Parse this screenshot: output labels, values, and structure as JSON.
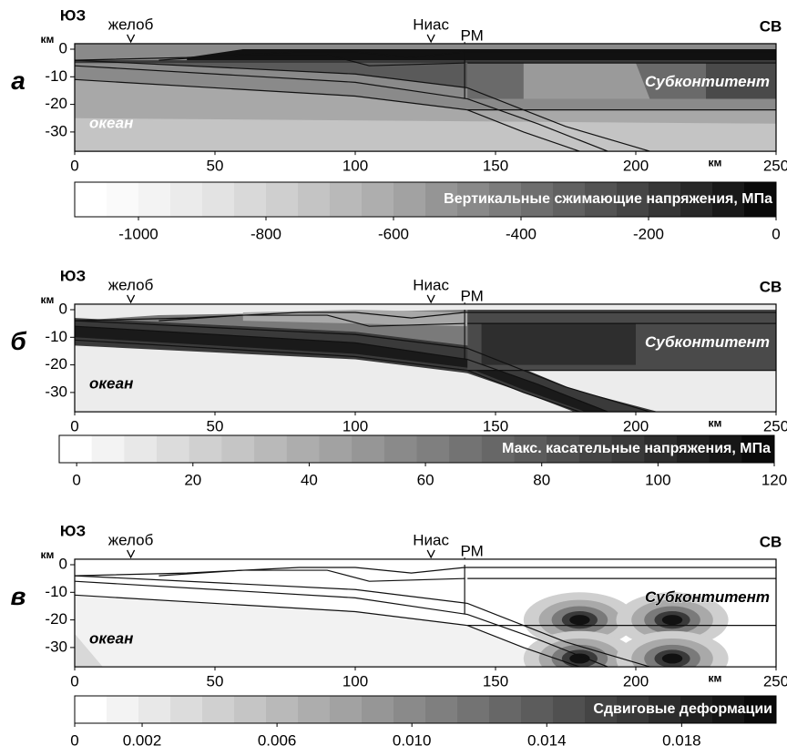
{
  "chart_data": [
    {
      "type": "contour",
      "panel_label": "а",
      "left_label": "ЮЗ",
      "right_label": "СВ",
      "y_unit": "км",
      "x_unit": "км",
      "markers": [
        {
          "label": "желоб",
          "x": 20
        },
        {
          "label": "Ниас",
          "x": 127
        },
        {
          "label": "РМ",
          "x": 139
        }
      ],
      "xlim": [
        0,
        250
      ],
      "xticks": [
        0,
        50,
        100,
        150,
        200,
        250
      ],
      "ylim": [
        -37,
        2
      ],
      "yticks": [
        0,
        -10,
        -20,
        -30
      ],
      "annotations": [
        "Субконтитент",
        "океан"
      ],
      "colorbar": {
        "title": "Вертикальные сжимающие напряжения, МПа",
        "lim": [
          -1100,
          0
        ],
        "ticks": [
          -1000,
          -800,
          -600,
          -400,
          -200,
          0
        ]
      }
    },
    {
      "type": "contour",
      "panel_label": "б",
      "left_label": "ЮЗ",
      "right_label": "СВ",
      "y_unit": "км",
      "x_unit": "км",
      "markers": [
        {
          "label": "желоб",
          "x": 20
        },
        {
          "label": "Ниас",
          "x": 127
        },
        {
          "label": "РМ",
          "x": 139
        }
      ],
      "xlim": [
        0,
        250
      ],
      "xticks": [
        0,
        50,
        100,
        150,
        200,
        250
      ],
      "ylim": [
        -37,
        2
      ],
      "yticks": [
        0,
        -10,
        -20,
        -30
      ],
      "annotations": [
        "Субконтитент",
        "океан"
      ],
      "colorbar": {
        "title": "Макс. касательные напряжения, МПа",
        "lim": [
          -3,
          120
        ],
        "ticks": [
          0,
          20,
          40,
          60,
          80,
          100,
          120
        ]
      }
    },
    {
      "type": "contour",
      "panel_label": "в",
      "left_label": "ЮЗ",
      "right_label": "СВ",
      "y_unit": "км",
      "x_unit": "км",
      "markers": [
        {
          "label": "желоб",
          "x": 20
        },
        {
          "label": "Ниас",
          "x": 127
        },
        {
          "label": "РМ",
          "x": 139
        }
      ],
      "xlim": [
        0,
        250
      ],
      "xticks": [
        0,
        50,
        100,
        150,
        200,
        250
      ],
      "ylim": [
        -37,
        2
      ],
      "yticks": [
        0,
        -10,
        -20,
        -30
      ],
      "annotations": [
        "Субконтитент",
        "океан"
      ],
      "colorbar": {
        "title": "Сдвиговые деформации",
        "lim": [
          0,
          0.0208
        ],
        "ticks": [
          0,
          0.002,
          0.006,
          {
            "value": 0.01,
            "label": "0.010"
          },
          0.014,
          0.018
        ]
      }
    }
  ]
}
